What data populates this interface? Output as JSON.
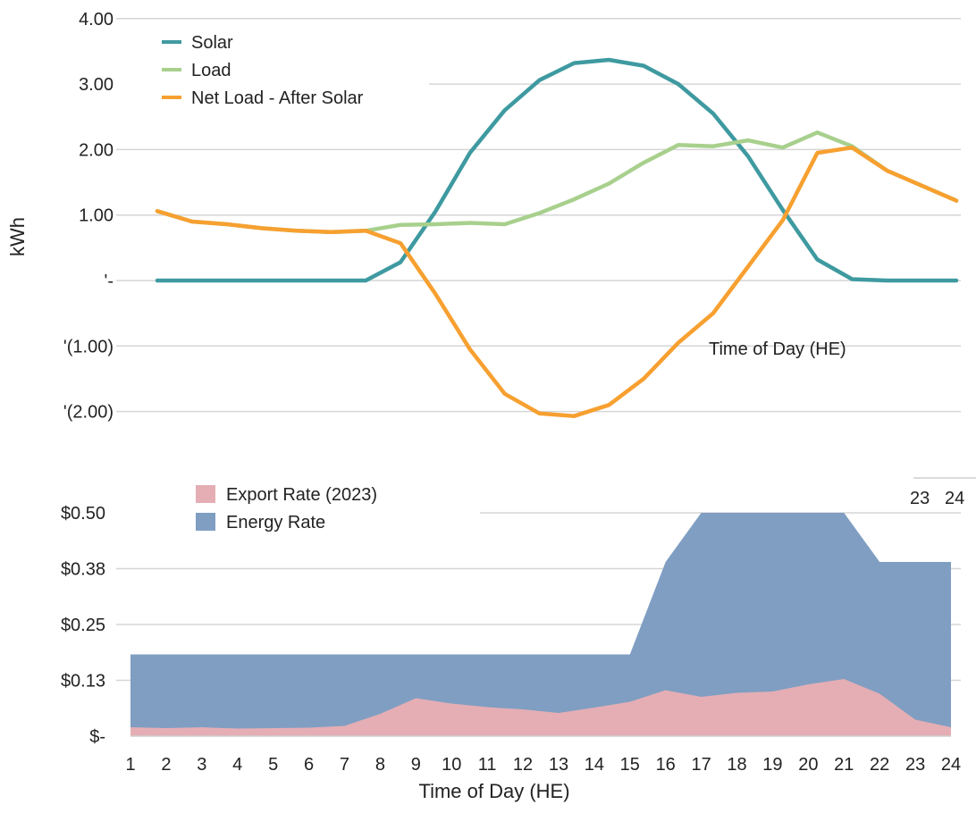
{
  "chart_data": [
    {
      "type": "line",
      "x": [
        1,
        2,
        3,
        4,
        5,
        6,
        7,
        8,
        9,
        10,
        11,
        12,
        13,
        14,
        15,
        16,
        17,
        18,
        19,
        20,
        21,
        22,
        23,
        24
      ],
      "ylabel": "kWh",
      "xlabel": "Time of Day (HE)",
      "y_tick_labels": [
        "4.00",
        "3.00",
        "2.00",
        "1.00",
        "'-",
        "'(1.00)",
        "'(2.00)"
      ],
      "y_tick_values": [
        4,
        3,
        2,
        1,
        0,
        -1,
        -2
      ],
      "ylim": [
        -2,
        4
      ],
      "legend_position": "top-left",
      "grid": true,
      "series": [
        {
          "name": "Solar",
          "color": "#3e9aa0",
          "values": [
            0,
            0,
            0,
            0,
            0,
            0,
            0,
            0.28,
            1.05,
            1.95,
            2.6,
            3.06,
            3.32,
            3.37,
            3.28,
            3.0,
            2.55,
            1.9,
            1.08,
            0.32,
            0.02,
            0,
            0,
            0
          ]
        },
        {
          "name": "Load",
          "color": "#a8d08d",
          "values": [
            1.06,
            0.9,
            0.86,
            0.8,
            0.76,
            0.74,
            0.76,
            0.85,
            0.86,
            0.88,
            0.86,
            1.03,
            1.24,
            1.48,
            1.8,
            2.07,
            2.05,
            2.14,
            2.03,
            2.26,
            2.05,
            1.68,
            1.45,
            1.22
          ]
        },
        {
          "name": "Net Load - After Solar",
          "color": "#f7a030",
          "values": [
            1.06,
            0.9,
            0.86,
            0.8,
            0.76,
            0.74,
            0.76,
            0.57,
            -0.2,
            -1.05,
            -1.73,
            -2.03,
            -2.07,
            -1.9,
            -1.5,
            -0.95,
            -0.5,
            0.21,
            0.92,
            1.95,
            2.03,
            1.68,
            1.45,
            1.22
          ]
        }
      ]
    },
    {
      "type": "area",
      "x": [
        1,
        2,
        3,
        4,
        5,
        6,
        7,
        8,
        9,
        10,
        11,
        12,
        13,
        14,
        15,
        16,
        17,
        18,
        19,
        20,
        21,
        22,
        23,
        24
      ],
      "xlabel": "Time of Day (HE)",
      "x_tick_labels": [
        "1",
        "2",
        "3",
        "4",
        "5",
        "6",
        "7",
        "8",
        "9",
        "10",
        "11",
        "12",
        "13",
        "14",
        "15",
        "16",
        "17",
        "18",
        "19",
        "20",
        "21",
        "22",
        "23",
        "24"
      ],
      "y_tick_labels": [
        "$0.50",
        "$0.38",
        "$0.25",
        "$0.13",
        "$-"
      ],
      "y_tick_values": [
        0.5,
        0.375,
        0.25,
        0.125,
        0
      ],
      "ylim": [
        0,
        0.5
      ],
      "legend_position": "top-left",
      "grid": true,
      "series": [
        {
          "name": "Energy Rate",
          "color": "#7f9ec2",
          "values": [
            0.183,
            0.183,
            0.183,
            0.183,
            0.183,
            0.183,
            0.183,
            0.183,
            0.183,
            0.183,
            0.183,
            0.183,
            0.183,
            0.183,
            0.183,
            0.39,
            0.5,
            0.5,
            0.5,
            0.5,
            0.5,
            0.39,
            0.39,
            0.39
          ]
        },
        {
          "name": "Export Rate (2023)",
          "color": "#e4aeb4",
          "values": [
            0.02,
            0.018,
            0.02,
            0.017,
            0.018,
            0.019,
            0.023,
            0.05,
            0.085,
            0.073,
            0.065,
            0.06,
            0.052,
            0.064,
            0.077,
            0.103,
            0.088,
            0.097,
            0.1,
            0.116,
            0.128,
            0.095,
            0.037,
            0.02
          ]
        }
      ]
    }
  ],
  "stray_labels": {
    "floating_time_label": "Time of Day (HE)",
    "corner_label_23": "23",
    "corner_label_24": "24"
  }
}
